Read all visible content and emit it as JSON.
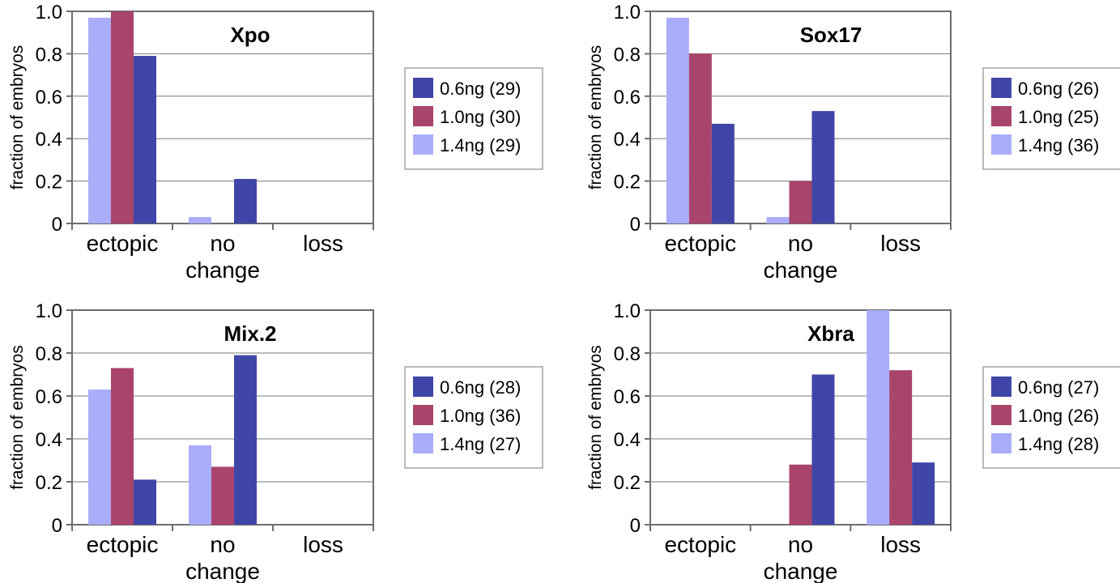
{
  "ylabel": "fraction of embryos",
  "categories": [
    "ectopic",
    "no change",
    "loss"
  ],
  "colors": {
    "0.6ng": "#4046a8",
    "1.0ng": "#a9446c",
    "1.4ng": "#a9adfa",
    "grid": "#7a7a7a",
    "axis": "#6e6e6e"
  },
  "chart_data": [
    {
      "type": "bar",
      "title": "Xpo",
      "xlabel": "",
      "ylabel": "fraction of embryos",
      "categories": [
        "ectopic",
        "no change",
        "loss"
      ],
      "ylim": [
        0,
        1.0
      ],
      "yticks": [
        "0",
        "0.2",
        "0.4",
        "0.6",
        "0.8",
        "1.0"
      ],
      "grid": true,
      "legend_position": "right",
      "series": [
        {
          "name": "1.4ng (29)",
          "color": "#a9adfa",
          "values": [
            0.97,
            0.03,
            0
          ]
        },
        {
          "name": "1.0ng (30)",
          "color": "#a9446c",
          "values": [
            1.0,
            0,
            0
          ]
        },
        {
          "name": "0.6ng (29)",
          "color": "#4046a8",
          "values": [
            0.79,
            0.21,
            0
          ]
        }
      ],
      "legend": [
        "0.6ng (29)",
        "1.0ng (30)",
        "1.4ng (29)"
      ]
    },
    {
      "type": "bar",
      "title": "Sox17",
      "xlabel": "",
      "ylabel": "fraction of embryos",
      "categories": [
        "ectopic",
        "no change",
        "loss"
      ],
      "ylim": [
        0,
        1.0
      ],
      "yticks": [
        "0",
        "0.2",
        "0.4",
        "0.6",
        "0.8",
        "1.0"
      ],
      "grid": true,
      "legend_position": "right",
      "series": [
        {
          "name": "1.4ng (36)",
          "color": "#a9adfa",
          "values": [
            0.97,
            0.03,
            0
          ]
        },
        {
          "name": "1.0ng (25)",
          "color": "#a9446c",
          "values": [
            0.8,
            0.2,
            0
          ]
        },
        {
          "name": "0.6ng (26)",
          "color": "#4046a8",
          "values": [
            0.47,
            0.53,
            0
          ]
        }
      ],
      "legend": [
        "0.6ng (26)",
        "1.0ng (25)",
        "1.4ng (36)"
      ]
    },
    {
      "type": "bar",
      "title": "Mix.2",
      "xlabel": "",
      "ylabel": "fraction of embryos",
      "categories": [
        "ectopic",
        "no change",
        "loss"
      ],
      "ylim": [
        0,
        1.0
      ],
      "yticks": [
        "0",
        "0.2",
        "0.4",
        "0.6",
        "0.8",
        "1.0"
      ],
      "grid": true,
      "legend_position": "right",
      "series": [
        {
          "name": "1.4ng (27)",
          "color": "#a9adfa",
          "values": [
            0.63,
            0.37,
            0
          ]
        },
        {
          "name": "1.0ng (36)",
          "color": "#a9446c",
          "values": [
            0.73,
            0.27,
            0
          ]
        },
        {
          "name": "0.6ng (28)",
          "color": "#4046a8",
          "values": [
            0.21,
            0.79,
            0
          ]
        }
      ],
      "legend": [
        "0.6ng (28)",
        "1.0ng (36)",
        "1.4ng (27)"
      ]
    },
    {
      "type": "bar",
      "title": "Xbra",
      "xlabel": "",
      "ylabel": "fraction of embryos",
      "categories": [
        "ectopic",
        "no change",
        "loss"
      ],
      "ylim": [
        0,
        1.0
      ],
      "yticks": [
        "0",
        "0.2",
        "0.4",
        "0.6",
        "0.8",
        "1.0"
      ],
      "grid": true,
      "legend_position": "right",
      "series": [
        {
          "name": "1.4ng (28)",
          "color": "#a9adfa",
          "values": [
            0,
            0,
            1.0
          ]
        },
        {
          "name": "1.0ng (26)",
          "color": "#a9446c",
          "values": [
            0,
            0.28,
            0.72
          ]
        },
        {
          "name": "0.6ng (27)",
          "color": "#4046a8",
          "values": [
            0,
            0.7,
            0.29
          ]
        }
      ],
      "legend": [
        "0.6ng (27)",
        "1.0ng (26)",
        "1.4ng (28)"
      ]
    }
  ]
}
